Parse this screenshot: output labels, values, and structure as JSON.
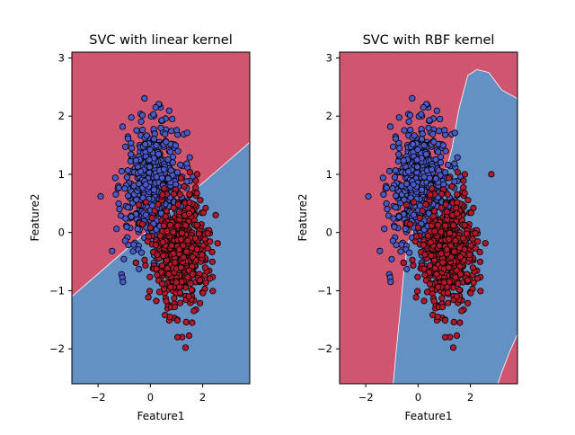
{
  "figure": {
    "colors": {
      "region_red": "#d0566f",
      "region_blue": "#6491c4",
      "class_red": "#b2182b",
      "class_blue": "#4a59c8",
      "point_edge": "#000000",
      "axis": "#000000",
      "background": "#ffffff"
    }
  },
  "chart_data": [
    {
      "type": "scatter",
      "title": "SVC with linear kernel",
      "xlabel": "Feature1",
      "ylabel": "Feature2",
      "xlim": [
        -3.0,
        3.8
      ],
      "ylim": [
        -2.6,
        3.1
      ],
      "xticks": [
        -2,
        0,
        2
      ],
      "yticks": [
        -2,
        -1,
        0,
        1,
        2,
        3
      ],
      "grid": false,
      "legend": "none",
      "kernel": "linear",
      "decision_boundary": [
        [
          -3.0,
          -1.1
        ],
        [
          3.8,
          1.55
        ]
      ],
      "regions": {
        "upper": "region_red",
        "lower": "region_blue"
      },
      "series": [
        {
          "class": "blue",
          "center": [
            0.1,
            0.8
          ],
          "spread": [
            0.6,
            0.55
          ],
          "count": 520,
          "outliers": [
            [
              0.2,
              2.15
            ],
            [
              -1.9,
              0.62
            ],
            [
              -1.05,
              -0.85
            ]
          ]
        },
        {
          "class": "red",
          "center": [
            1.2,
            -0.3
          ],
          "spread": [
            0.55,
            0.5
          ],
          "count": 520,
          "outliers": [
            [
              0.75,
              -1.45
            ],
            [
              1.6,
              -1.55
            ],
            [
              2.5,
              0.3
            ]
          ]
        }
      ]
    },
    {
      "type": "scatter",
      "title": "SVC with RBF kernel",
      "xlabel": "Feature1",
      "ylabel": "Feature2",
      "xlim": [
        -3.0,
        3.8
      ],
      "ylim": [
        -2.6,
        3.1
      ],
      "xticks": [
        -2,
        0,
        2
      ],
      "yticks": [
        -2,
        -1,
        0,
        1,
        2,
        3
      ],
      "grid": false,
      "legend": "none",
      "kernel": "rbf",
      "blue_region_boundary": [
        [
          -0.95,
          -2.6
        ],
        [
          -0.85,
          -2.1
        ],
        [
          -0.65,
          -1.2
        ],
        [
          -0.55,
          -0.7
        ],
        [
          -0.4,
          -0.2
        ],
        [
          0.0,
          0.25
        ],
        [
          0.5,
          0.6
        ],
        [
          1.0,
          0.95
        ],
        [
          1.3,
          1.45
        ],
        [
          1.55,
          2.1
        ],
        [
          1.9,
          2.7
        ],
        [
          2.25,
          2.8
        ],
        [
          2.7,
          2.75
        ],
        [
          3.2,
          2.45
        ],
        [
          3.8,
          2.3
        ],
        [
          3.8,
          -1.75
        ],
        [
          3.5,
          -2.05
        ],
        [
          3.2,
          -2.4
        ],
        [
          3.05,
          -2.6
        ]
      ],
      "regions": {
        "inside": "region_blue",
        "outside": "region_red"
      },
      "series": [
        {
          "class": "blue",
          "center": [
            0.1,
            0.8
          ],
          "spread": [
            0.6,
            0.55
          ],
          "count": 520,
          "outliers": [
            [
              0.2,
              2.15
            ],
            [
              -1.9,
              0.62
            ],
            [
              -1.05,
              -0.85
            ]
          ]
        },
        {
          "class": "red",
          "center": [
            1.2,
            -0.3
          ],
          "spread": [
            0.55,
            0.5
          ],
          "count": 520,
          "outliers": [
            [
              0.75,
              -1.45
            ],
            [
              1.6,
              -1.55
            ],
            [
              2.8,
              1.0
            ]
          ]
        }
      ]
    }
  ]
}
